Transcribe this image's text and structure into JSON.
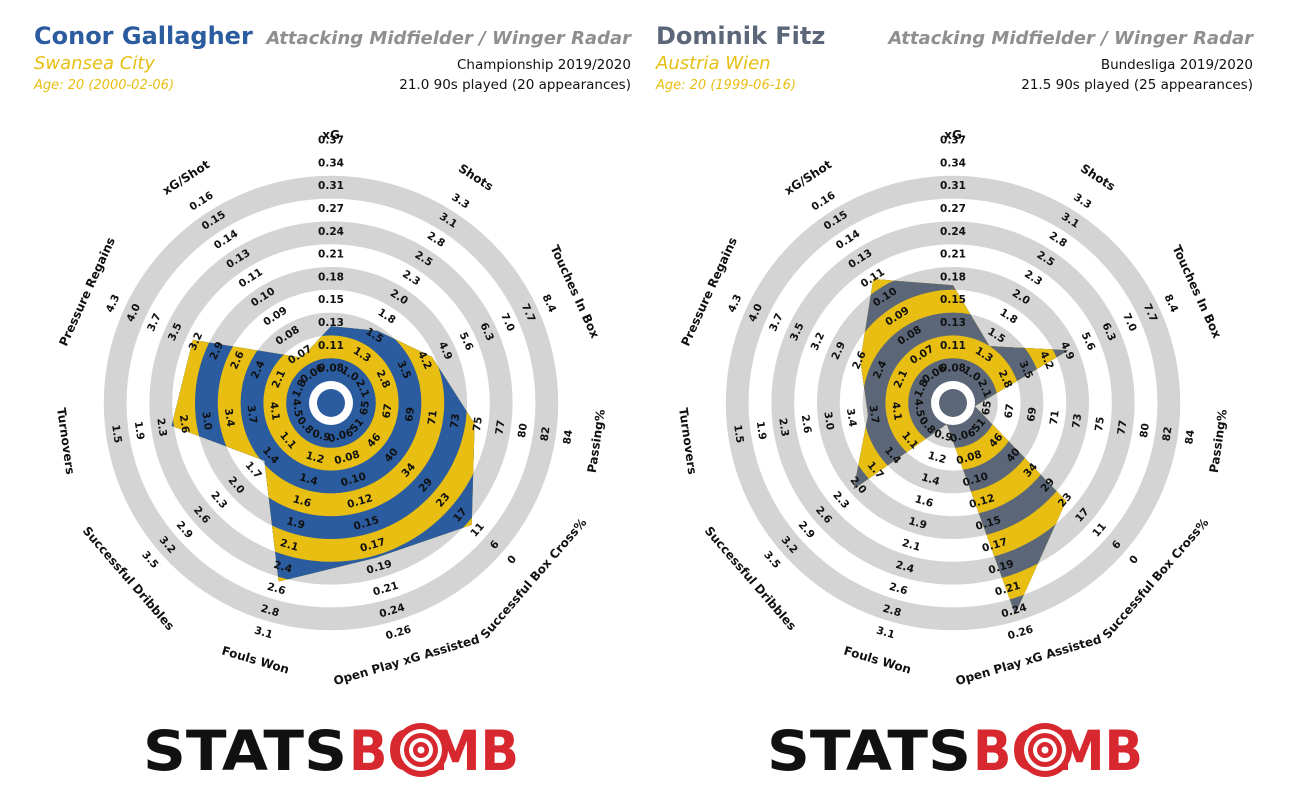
{
  "brand": {
    "logo_left": "STATS",
    "logo_right": "BOMB",
    "logo_icon": "target-icon",
    "logo_black": "#111111",
    "logo_red": "#d7282f"
  },
  "chart_data": [
    {
      "type": "radar",
      "player": "Conor Gallagher",
      "team": "Swansea City",
      "age": "Age: 20 (2000-02-06)",
      "title": "Attacking Midfielder / Winger Radar",
      "competition": "Championship 2019/2020",
      "minutes": "21.0 90s played (20 appearances)",
      "primary_color": "#2b5c9f",
      "secondary_color": "#e8be12",
      "axes": [
        {
          "label": "xG",
          "ticks": [
            "0.08",
            "0.11",
            "0.13",
            "0.15",
            "0.18",
            "0.21",
            "0.24",
            "0.27",
            "0.31",
            "0.34",
            "0.37"
          ],
          "value_frac": 0.24
        },
        {
          "label": "Shots",
          "ticks": [
            "1.0",
            "1.3",
            "1.5",
            "1.8",
            "2.0",
            "2.3",
            "2.5",
            "2.8",
            "3.1",
            "3.3"
          ],
          "value_frac": 0.28
        },
        {
          "label": "Touches In Box",
          "ticks": [
            "2.1",
            "2.8",
            "3.5",
            "4.2",
            "4.9",
            "5.6",
            "6.3",
            "7.0",
            "7.7",
            "8.4"
          ],
          "value_frac": 0.39
        },
        {
          "label": "Passing%",
          "ticks": [
            "65",
            "67",
            "69",
            "71",
            "73",
            "75",
            "77",
            "80",
            "82",
            "84"
          ],
          "value_frac": 0.54
        },
        {
          "label": "Successful Box Cross%",
          "ticks": [
            "51",
            "46",
            "40",
            "34",
            "29",
            "23",
            "17",
            "11",
            "6",
            "0"
          ],
          "value_frac": 0.72
        },
        {
          "label": "Open Play xG Assisted",
          "ticks": [
            "0.06",
            "0.08",
            "0.10",
            "0.12",
            "0.15",
            "0.17",
            "0.19",
            "0.21",
            "0.24",
            "0.26"
          ],
          "value_frac": 0.61
        },
        {
          "label": "Fouls Won",
          "ticks": [
            "0.9",
            "1.2",
            "1.4",
            "1.6",
            "1.9",
            "2.1",
            "2.4",
            "2.6",
            "2.8",
            "3.1"
          ],
          "value_frac": 0.72
        },
        {
          "label": "Successful Dribbles",
          "ticks": [
            "0.8",
            "1.1",
            "1.4",
            "1.7",
            "2.0",
            "2.3",
            "2.6",
            "2.9",
            "3.2",
            "3.5"
          ],
          "value_frac": 0.29
        },
        {
          "label": "Turnovers",
          "ticks": [
            "4.5",
            "4.1",
            "3.7",
            "3.4",
            "3.0",
            "2.6",
            "2.3",
            "1.9",
            "1.5"
          ],
          "value_frac": 0.61
        },
        {
          "label": "Pressure Regains",
          "ticks": [
            "1.8",
            "2.1",
            "2.4",
            "2.6",
            "2.9",
            "3.2",
            "3.5",
            "3.7",
            "4.0",
            "4.3"
          ],
          "value_frac": 0.57
        },
        {
          "label": "xG/Shot",
          "ticks": [
            "0.06",
            "0.07",
            "0.08",
            "0.09",
            "0.10",
            "0.11",
            "0.13",
            "0.14",
            "0.15",
            "0.16"
          ],
          "value_frac": 0.14
        }
      ]
    },
    {
      "type": "radar",
      "player": "Dominik Fitz",
      "team": "Austria Wien",
      "age": "Age: 20 (1999-06-16)",
      "title": "Attacking Midfielder / Winger Radar",
      "competition": "Bundesliga 2019/2020",
      "minutes": "21.5 90s played (25 appearances)",
      "primary_color": "#5b6779",
      "secondary_color": "#e8be12",
      "axes": [
        {
          "label": "xG",
          "ticks": [
            "0.08",
            "0.11",
            "0.13",
            "0.15",
            "0.18",
            "0.21",
            "0.24",
            "0.27",
            "0.31",
            "0.34",
            "0.37"
          ],
          "value_frac": 0.42
        },
        {
          "label": "Shots",
          "ticks": [
            "1.0",
            "1.3",
            "1.5",
            "1.8",
            "2.0",
            "2.3",
            "2.5",
            "2.8",
            "3.1",
            "3.3"
          ],
          "value_frac": 0.2
        },
        {
          "label": "Touches In Box",
          "ticks": [
            "2.1",
            "2.8",
            "3.5",
            "4.2",
            "4.9",
            "5.6",
            "6.3",
            "7.0",
            "7.7",
            "8.4"
          ],
          "value_frac": 0.46
        },
        {
          "label": "Passing%",
          "ticks": [
            "65",
            "67",
            "69",
            "71",
            "73",
            "75",
            "77",
            "80",
            "82",
            "84"
          ],
          "value_frac": 0.0
        },
        {
          "label": "Successful Box Cross%",
          "ticks": [
            "51",
            "46",
            "40",
            "34",
            "29",
            "23",
            "17",
            "11",
            "6",
            "0"
          ],
          "value_frac": 0.56
        },
        {
          "label": "Open Play xG Assisted",
          "ticks": [
            "0.06",
            "0.08",
            "0.10",
            "0.12",
            "0.15",
            "0.17",
            "0.19",
            "0.21",
            "0.24",
            "0.26"
          ],
          "value_frac": 0.87
        },
        {
          "label": "Fouls Won",
          "ticks": [
            "0.9",
            "1.2",
            "1.4",
            "1.6",
            "1.9",
            "2.1",
            "2.4",
            "2.6",
            "2.8",
            "3.1"
          ],
          "value_frac": 0.0
        },
        {
          "label": "Successful Dribbles",
          "ticks": [
            "0.8",
            "1.1",
            "1.4",
            "1.7",
            "2.0",
            "2.3",
            "2.6",
            "2.9",
            "3.2",
            "3.5"
          ],
          "value_frac": 0.48
        },
        {
          "label": "Turnovers",
          "ticks": [
            "4.5",
            "4.1",
            "3.7",
            "3.4",
            "3.0",
            "2.6",
            "2.3",
            "1.9",
            "1.5"
          ],
          "value_frac": 0.28
        },
        {
          "label": "Pressure Regains",
          "ticks": [
            "1.8",
            "2.1",
            "2.4",
            "2.6",
            "2.9",
            "3.2",
            "3.5",
            "3.7",
            "4.0",
            "4.3"
          ],
          "value_frac": 0.35
        },
        {
          "label": "xG/Shot",
          "ticks": [
            "0.06",
            "0.07",
            "0.08",
            "0.09",
            "0.10",
            "0.11",
            "0.13",
            "0.14",
            "0.15",
            "0.16"
          ],
          "value_frac": 0.55
        }
      ]
    }
  ]
}
